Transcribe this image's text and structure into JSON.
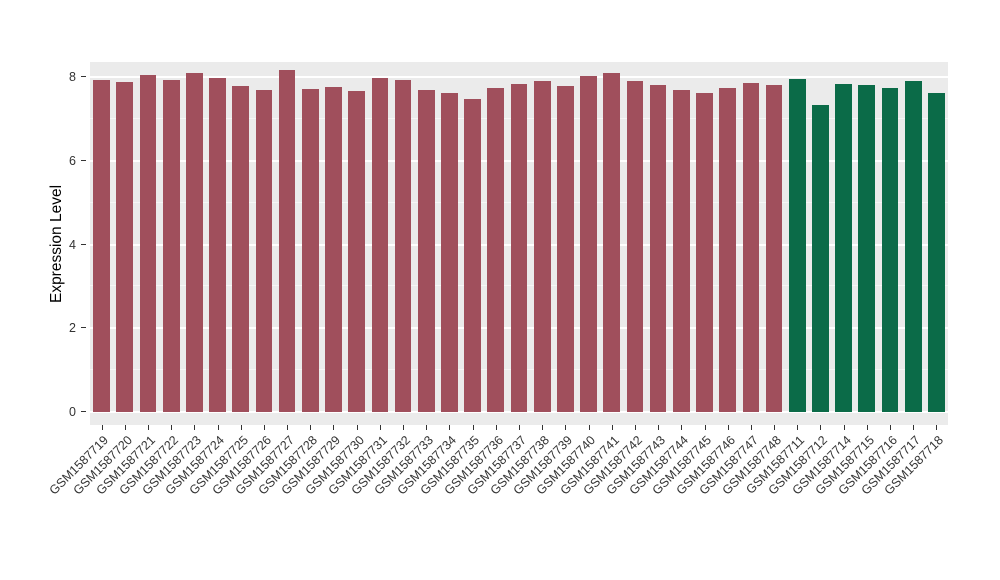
{
  "chart_data": {
    "type": "bar",
    "title": "",
    "xlabel": "",
    "ylabel": "Expression Level",
    "ylim": [
      0,
      8.6
    ],
    "yticks": [
      0,
      2,
      4,
      6,
      8
    ],
    "yticks_minor": [
      1,
      3,
      5,
      7
    ],
    "grid": true,
    "legend": "none",
    "categories": [
      "GSM1587719",
      "GSM1587720",
      "GSM1587721",
      "GSM1587722",
      "GSM1587723",
      "GSM1587724",
      "GSM1587725",
      "GSM1587726",
      "GSM1587727",
      "GSM1587728",
      "GSM1587729",
      "GSM1587730",
      "GSM1587731",
      "GSM1587732",
      "GSM1587733",
      "GSM1587734",
      "GSM1587735",
      "GSM1587736",
      "GSM1587737",
      "GSM1587738",
      "GSM1587739",
      "GSM1587740",
      "GSM1587741",
      "GSM1587742",
      "GSM1587743",
      "GSM1587744",
      "GSM1587745",
      "GSM1587746",
      "GSM1587747",
      "GSM1587748",
      "GSM1587711",
      "GSM1587712",
      "GSM1587714",
      "GSM1587715",
      "GSM1587716",
      "GSM1587717",
      "GSM1587718"
    ],
    "values": [
      7.92,
      7.88,
      8.06,
      7.93,
      8.1,
      7.97,
      7.78,
      7.68,
      8.16,
      7.72,
      7.76,
      7.66,
      7.98,
      7.92,
      7.7,
      7.62,
      7.47,
      7.74,
      7.84,
      7.9,
      7.79,
      8.02,
      8.1,
      7.91,
      7.8,
      7.69,
      7.63,
      7.74,
      7.86,
      7.8,
      7.95,
      7.32,
      7.83,
      7.8,
      7.73,
      7.9,
      7.62
    ],
    "groups": [
      "maroon",
      "maroon",
      "maroon",
      "maroon",
      "maroon",
      "maroon",
      "maroon",
      "maroon",
      "maroon",
      "maroon",
      "maroon",
      "maroon",
      "maroon",
      "maroon",
      "maroon",
      "maroon",
      "maroon",
      "maroon",
      "maroon",
      "maroon",
      "maroon",
      "maroon",
      "maroon",
      "maroon",
      "maroon",
      "maroon",
      "maroon",
      "maroon",
      "maroon",
      "maroon",
      "green",
      "green",
      "green",
      "green",
      "green",
      "green",
      "green"
    ],
    "group_colors": {
      "maroon": "#A04F5C",
      "green": "#0B6B48"
    }
  },
  "style": {
    "panel_bg": "#EBEBEB",
    "grid_color": "#FFFFFF",
    "tick_text_color": "#333333",
    "axis_title_color": "#000000"
  }
}
